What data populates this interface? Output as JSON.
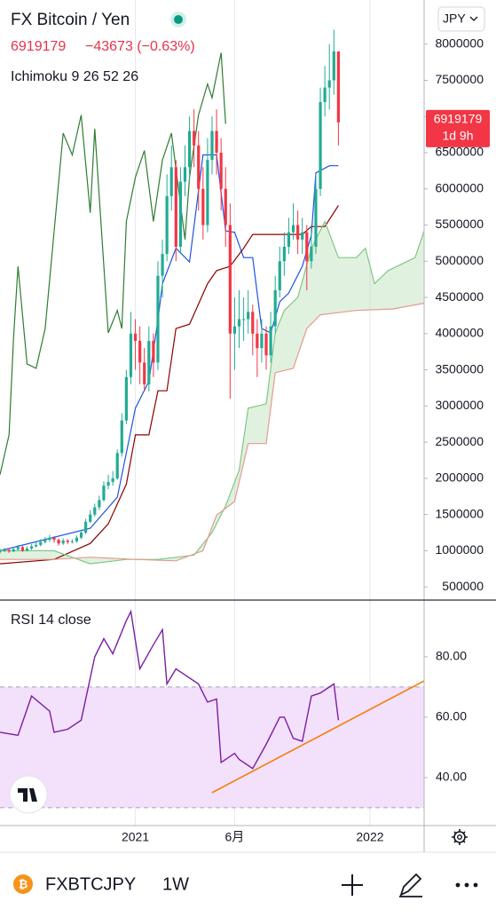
{
  "chart_data": [
    {
      "type": "candlestick",
      "title": "FX Bitcoin / Yen",
      "last": 6919179,
      "change": "−43673 (−0.63%)",
      "indicator": "Ichimoku 9 26 52 26",
      "currency": "JPY",
      "countdown": "1d 9h",
      "up_color": "#22ab94",
      "down_color": "#f23645",
      "x": [
        -30,
        -29,
        -28,
        -27,
        -26,
        -25,
        -24,
        -23,
        -22,
        -21,
        -20,
        -19,
        -18,
        -17,
        -16,
        -15,
        -14,
        -13,
        -12,
        -11,
        -10,
        -9,
        -8,
        -7,
        -6,
        -5,
        -4,
        -3,
        -2,
        -1,
        0,
        1,
        2,
        3,
        4,
        5,
        6,
        7,
        8,
        9,
        10,
        11,
        12,
        13,
        14,
        15,
        16,
        17,
        18,
        19,
        20,
        21,
        22,
        23,
        24,
        25,
        26,
        27,
        28,
        29,
        30,
        31,
        32,
        33,
        34,
        35,
        36,
        37,
        38,
        39,
        40,
        41,
        42,
        43,
        44,
        45
      ],
      "open": [
        980000,
        1000000,
        1010000,
        990000,
        1020000,
        1050000,
        1000000,
        1030000,
        1060000,
        1080000,
        1120000,
        1150000,
        1180000,
        1150000,
        1100000,
        1140000,
        1120000,
        1130000,
        1180000,
        1250000,
        1400000,
        1500000,
        1600000,
        1700000,
        1900000,
        1950000,
        2000000,
        2350000,
        2800000,
        3400000,
        4000000,
        3900000,
        3600000,
        3300000,
        3900000,
        3600000,
        4800000,
        5100000,
        5900000,
        6300000,
        5200000,
        6100000,
        6300000,
        6800000,
        6600000,
        6000000,
        5500000,
        6400000,
        6800000,
        6500000,
        6000000,
        5500000,
        4000000,
        4100000,
        4200000,
        4200000,
        4300000,
        4000000,
        3800000,
        4000000,
        3700000,
        4100000,
        4600000,
        5000000,
        5200000,
        5400000,
        5500000,
        5300000,
        5400000,
        5000000,
        5200000,
        6000000,
        7200000,
        7400000,
        7500000,
        7900000
      ],
      "high": [
        1030000,
        1040000,
        1030000,
        1050000,
        1080000,
        1070000,
        1060000,
        1090000,
        1120000,
        1160000,
        1190000,
        1220000,
        1200000,
        1170000,
        1170000,
        1160000,
        1160000,
        1210000,
        1290000,
        1440000,
        1560000,
        1650000,
        1760000,
        1960000,
        2050000,
        2100000,
        2400000,
        2900000,
        3500000,
        4300000,
        4200000,
        4100000,
        3800000,
        4100000,
        4000000,
        5000000,
        5300000,
        6200000,
        6600000,
        6400000,
        6300000,
        6600000,
        7000000,
        7100000,
        6800000,
        6300000,
        6700000,
        7000000,
        7100000,
        6700000,
        6300000,
        5800000,
        4500000,
        4600000,
        4500000,
        4600000,
        4400000,
        4200000,
        4200000,
        4100000,
        4300000,
        4800000,
        5200000,
        5400000,
        5600000,
        5800000,
        5700000,
        5600000,
        5500000,
        5500000,
        6200000,
        7400000,
        7700000,
        8000000,
        8200000,
        7900000
      ],
      "low": [
        960000,
        980000,
        970000,
        980000,
        1000000,
        980000,
        990000,
        1010000,
        1040000,
        1060000,
        1100000,
        1120000,
        1110000,
        1070000,
        1080000,
        1090000,
        1100000,
        1110000,
        1160000,
        1230000,
        1380000,
        1470000,
        1560000,
        1680000,
        1850000,
        1900000,
        1980000,
        2300000,
        2750000,
        3300000,
        3500000,
        3300000,
        3200000,
        3200000,
        3400000,
        3500000,
        4500000,
        5000000,
        5700000,
        5000000,
        5100000,
        5900000,
        6100000,
        6300000,
        5700000,
        5300000,
        5400000,
        6200000,
        6200000,
        5700000,
        5200000,
        3100000,
        3500000,
        3800000,
        3900000,
        4000000,
        3700000,
        3400000,
        3600000,
        3500000,
        3600000,
        4000000,
        4500000,
        4800000,
        5100000,
        5300000,
        5100000,
        5100000,
        4600000,
        4900000,
        5100000,
        5900000,
        7000000,
        7100000,
        7300000,
        6600000
      ],
      "close": [
        1000000,
        1010000,
        990000,
        1020000,
        1050000,
        1000000,
        1030000,
        1060000,
        1080000,
        1120000,
        1150000,
        1180000,
        1150000,
        1100000,
        1140000,
        1120000,
        1130000,
        1180000,
        1250000,
        1400000,
        1500000,
        1600000,
        1700000,
        1900000,
        1950000,
        2000000,
        2350000,
        2800000,
        3400000,
        4000000,
        3900000,
        3600000,
        3300000,
        3900000,
        3600000,
        4800000,
        5100000,
        5900000,
        6300000,
        5200000,
        6100000,
        6300000,
        6800000,
        6600000,
        6000000,
        5500000,
        6400000,
        6800000,
        6500000,
        6000000,
        5500000,
        4000000,
        4100000,
        4200000,
        4200000,
        4300000,
        4000000,
        3800000,
        4000000,
        3700000,
        4100000,
        4600000,
        5000000,
        5200000,
        5400000,
        5500000,
        5300000,
        5400000,
        5000000,
        5200000,
        6000000,
        7200000,
        7400000,
        7500000,
        7900000,
        6919179
      ],
      "lines": [
        {
          "color": "#2e7d32",
          "x": [
            -30,
            -28,
            -27,
            -26,
            -24,
            -22,
            -20,
            -16,
            -14,
            -12,
            -10,
            -9,
            -6,
            -4,
            -3,
            -2,
            0,
            2,
            4,
            6,
            8,
            11,
            12,
            14,
            16,
            17,
            19,
            20
          ],
          "values": [
            2050000,
            2600000,
            3950000,
            4930000,
            3580000,
            3520000,
            4070000,
            6770000,
            6470000,
            7020000,
            5670000,
            6830000,
            4010000,
            4320000,
            4070000,
            5550000,
            6160000,
            6530000,
            5550000,
            6400000,
            6770000,
            5300000,
            6160000,
            7020000,
            7450000,
            7260000,
            7880000,
            6900000
          ]
        },
        {
          "color": "#1e53e5",
          "x": [
            -30,
            -10,
            -4,
            -2,
            0,
            3,
            5,
            6,
            9,
            12,
            15,
            18,
            20,
            22,
            24,
            26,
            28,
            30,
            32,
            34,
            37,
            39,
            40,
            43,
            45
          ],
          "values": [
            1000000,
            1310000,
            1740000,
            2350000,
            2970000,
            3340000,
            4190000,
            4690000,
            5180000,
            4990000,
            6470000,
            6470000,
            5420000,
            5400000,
            5050000,
            5050000,
            4070000,
            4010000,
            4440000,
            4560000,
            4930000,
            5360000,
            6220000,
            6320000,
            6320000
          ]
        },
        {
          "color": "#8b0000",
          "x": [
            -30,
            -18,
            -10,
            -6,
            -2,
            0,
            3,
            5,
            7,
            9,
            12,
            16,
            18,
            21,
            24,
            26,
            37,
            39,
            42,
            45
          ],
          "values": [
            820000,
            880000,
            1100000,
            1370000,
            1920000,
            2600000,
            2600000,
            3210000,
            3210000,
            4070000,
            4130000,
            4690000,
            4870000,
            4930000,
            5180000,
            5370000,
            5370000,
            5480000,
            5480000,
            5770000
          ]
        },
        {
          "color": "#81c784",
          "x": [
            -30,
            -18,
            -10,
            -2,
            5,
            13,
            17,
            20,
            23,
            25,
            29,
            31,
            33,
            36,
            39,
            42,
            45,
            49,
            51,
            53,
            56,
            60,
            62,
            64
          ],
          "values": [
            1000000,
            1000000,
            820000,
            880000,
            880000,
            940000,
            1250000,
            1620000,
            2110000,
            2970000,
            3030000,
            4010000,
            4320000,
            4500000,
            5180000,
            5550000,
            5050000,
            5050000,
            5180000,
            4690000,
            4870000,
            4990000,
            5050000,
            5420000
          ]
        },
        {
          "color": "#e8998d",
          "x": [
            -30,
            -18,
            -10,
            0,
            9,
            15,
            18,
            22,
            25,
            29,
            31,
            35,
            38,
            41,
            49,
            57,
            64
          ],
          "values": [
            880000,
            880000,
            910000,
            880000,
            860000,
            1000000,
            1490000,
            1680000,
            2480000,
            2480000,
            3460000,
            3520000,
            4070000,
            4260000,
            4320000,
            4340000,
            4420000
          ]
        }
      ],
      "cloud_color": "#a5d6a7",
      "xlim": [
        -30,
        64
      ],
      "ylim": [
        330000,
        8610000
      ],
      "yticks": [
        500000,
        1000000,
        1500000,
        2000000,
        2500000,
        3000000,
        3500000,
        4000000,
        4500000,
        5000000,
        5500000,
        6000000,
        6500000,
        7000000,
        7500000,
        8000000
      ],
      "xticks": [
        {
          "value": 0,
          "label": "2021"
        },
        {
          "value": 22,
          "label": "6月"
        },
        {
          "value": 52,
          "label": "2022"
        }
      ],
      "xgrid": true
    },
    {
      "type": "line",
      "title": "RSI 14 close",
      "color": "#7b1fa2",
      "x": [
        -30,
        -26,
        -23,
        -19,
        -18,
        -15,
        -12,
        -9,
        -7,
        -5,
        -2,
        -1,
        1,
        4,
        6,
        7,
        9,
        11,
        14,
        16,
        18,
        19,
        22,
        23,
        26,
        29,
        32,
        33,
        35,
        37,
        39,
        41,
        44,
        45
      ],
      "values": [
        55,
        54,
        67,
        62,
        55,
        56,
        59,
        80,
        86,
        81,
        92,
        95,
        76,
        84,
        89,
        71,
        76,
        74,
        71,
        65,
        66,
        45,
        48,
        46,
        43,
        51,
        60,
        60,
        53,
        52,
        67,
        68,
        71,
        59
      ],
      "band": [
        30,
        70
      ],
      "band_color": "#f3e0fb",
      "trendline": {
        "color": "#f57c00",
        "x": [
          17,
          64
        ],
        "values": [
          35,
          72
        ]
      },
      "xlim": [
        -30,
        64
      ],
      "ylim": [
        24.1,
        98.5
      ],
      "yticks": [
        {
          "value": 40,
          "label": "40.00"
        },
        {
          "value": 60,
          "label": "60.00"
        },
        {
          "value": 80,
          "label": "80.00"
        }
      ]
    }
  ],
  "toolbar": {
    "symbol": "FXBTCJPY",
    "interval": "1W"
  }
}
